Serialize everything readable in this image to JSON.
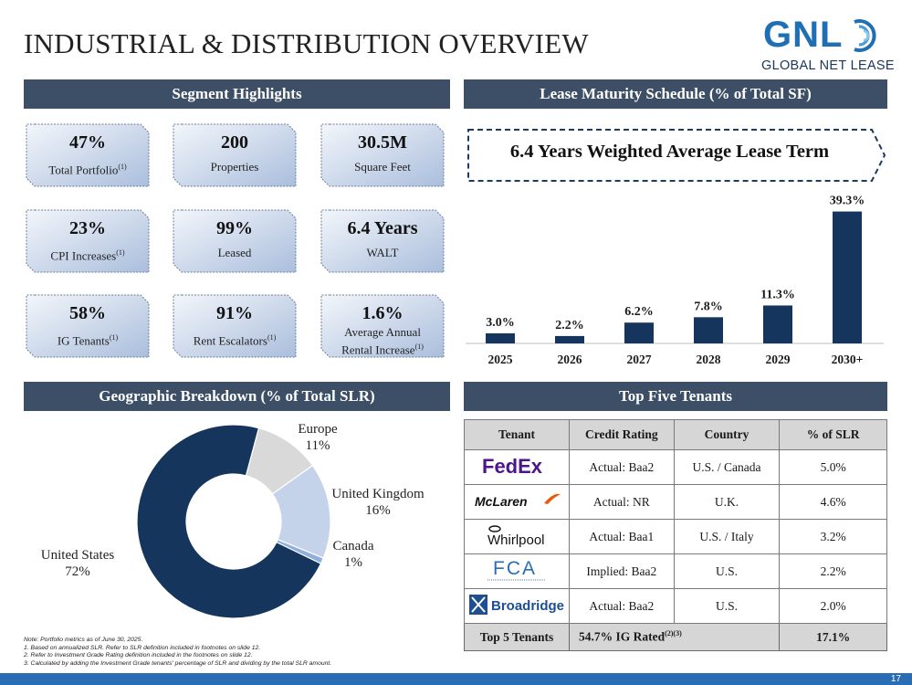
{
  "title": "INDUSTRIAL & DISTRIBUTION OVERVIEW",
  "logo": {
    "wordmark": "GNL",
    "subtitle": "GLOBAL NET LEASE"
  },
  "sections": {
    "segment_highlights": "Segment Highlights",
    "lease_maturity": "Lease Maturity Schedule (% of Total SF)",
    "geographic": "Geographic Breakdown (% of Total SLR)",
    "top_tenants": "Top Five Tenants"
  },
  "highlights": [
    {
      "value": "47%",
      "label": "Total Portfolio",
      "footnote": "(1)"
    },
    {
      "value": "200",
      "label": "Properties",
      "footnote": ""
    },
    {
      "value": "30.5M",
      "label": "Square Feet",
      "footnote": ""
    },
    {
      "value": "23%",
      "label": "CPI Increases",
      "footnote": "(1)"
    },
    {
      "value": "99%",
      "label": "Leased",
      "footnote": ""
    },
    {
      "value": "6.4 Years",
      "label": "WALT",
      "footnote": ""
    },
    {
      "value": "58%",
      "label": "IG Tenants",
      "footnote": "(1)"
    },
    {
      "value": "91%",
      "label": "Rent Escalators",
      "footnote": "(1)"
    },
    {
      "value": "1.6%",
      "label_line1": "Average Annual",
      "label_line2": "Rental Increase",
      "footnote": "(1)"
    }
  ],
  "walt_callout": "6.4 Years Weighted Average Lease Term",
  "chart_data": [
    {
      "type": "bar",
      "categories": [
        "2025",
        "2026",
        "2027",
        "2028",
        "2029",
        "2030+"
      ],
      "values": [
        3.0,
        2.2,
        6.2,
        7.8,
        11.3,
        39.3
      ],
      "value_labels": [
        "3.0%",
        "2.2%",
        "6.2%",
        "7.8%",
        "11.3%",
        "39.3%"
      ],
      "ylim": [
        0,
        40
      ],
      "color": "#15355c",
      "grid": false
    },
    {
      "type": "pie",
      "style": "donut",
      "categories": [
        "United States",
        "Europe",
        "United Kingdom",
        "Canada"
      ],
      "values": [
        72,
        11,
        16,
        1
      ],
      "value_labels": [
        "72%",
        "11%",
        "16%",
        "1%"
      ],
      "colors": [
        "#15355c",
        "#d9d9d9",
        "#c5d3ea",
        "#8fb0dd"
      ]
    }
  ],
  "tenants_table": {
    "headers": [
      "Tenant",
      "Credit Rating",
      "Country",
      "% of SLR"
    ],
    "rows": [
      {
        "tenant": "FedEx",
        "rating": "Actual: Baa2",
        "country": "U.S. / Canada",
        "pct": "5.0%"
      },
      {
        "tenant": "McLaren",
        "rating": "Actual: NR",
        "country": "U.K.",
        "pct": "4.6%"
      },
      {
        "tenant": "Whirlpool",
        "rating": "Actual: Baa1",
        "country": "U.S. / Italy",
        "pct": "3.2%"
      },
      {
        "tenant": "FCA",
        "rating": "Implied: Baa2",
        "country": "U.S.",
        "pct": "2.2%"
      },
      {
        "tenant": "Broadridge",
        "rating": "Actual: Baa2",
        "country": "U.S.",
        "pct": "2.0%"
      }
    ],
    "total": {
      "label": "Top 5 Tenants",
      "ig": "54.7% IG Rated",
      "ig_footnote": "(2)(3)",
      "pct": "17.1%"
    }
  },
  "notes": [
    "Note: Portfolio metrics as of June 30, 2025.",
    "1.    Based on annualized SLR. Refer to SLR definition included in footnotes on slide 12.",
    "2.    Refer to Investment Grade Rating definition included in the footnotes on slide 12.",
    "3.    Calculated by adding the Investment Grade tenants' percentage of SLR and dividing by the total SLR amount."
  ],
  "page_number": "17"
}
